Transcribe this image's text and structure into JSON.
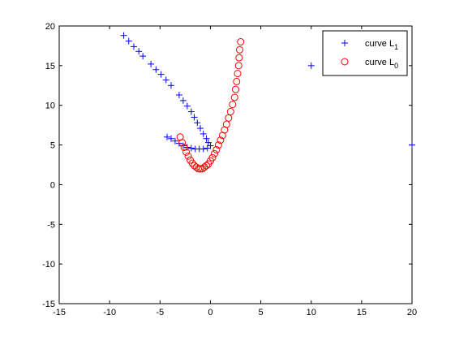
{
  "chart_data": {
    "type": "scatter",
    "title": "",
    "xlabel": "",
    "ylabel": "",
    "xlim": [
      -15,
      20
    ],
    "ylim": [
      -15,
      20
    ],
    "xticks": [
      -15,
      -10,
      -5,
      0,
      5,
      10,
      15,
      20
    ],
    "yticks": [
      -15,
      -10,
      -5,
      0,
      5,
      10,
      15,
      20
    ],
    "grid": false,
    "legend_position": "top-right",
    "series": [
      {
        "name": "curve L",
        "subscript": "1",
        "marker": "plus",
        "color": "#0000ff",
        "points": [
          [
            -8.6,
            18.8
          ],
          [
            -8.1,
            18.1
          ],
          [
            -7.6,
            17.4
          ],
          [
            -7.1,
            16.8
          ],
          [
            -6.7,
            16.2
          ],
          [
            -5.9,
            15.2
          ],
          [
            -5.4,
            14.5
          ],
          [
            -4.9,
            13.9
          ],
          [
            -4.4,
            13.2
          ],
          [
            -3.9,
            12.5
          ],
          [
            -3.1,
            11.3
          ],
          [
            -2.7,
            10.6
          ],
          [
            -2.3,
            9.9
          ],
          [
            -1.9,
            9.2
          ],
          [
            -1.6,
            8.5
          ],
          [
            -1.3,
            7.8
          ],
          [
            -1.0,
            7.1
          ],
          [
            -0.7,
            6.4
          ],
          [
            -0.4,
            5.8
          ],
          [
            -0.2,
            5.3
          ],
          [
            0.0,
            4.9
          ],
          [
            -0.3,
            4.6
          ],
          [
            -0.7,
            4.5
          ],
          [
            -1.1,
            4.5
          ],
          [
            -1.5,
            4.5
          ],
          [
            -1.9,
            4.6
          ],
          [
            -2.3,
            4.7
          ],
          [
            -2.7,
            4.9
          ],
          [
            -3.1,
            5.2
          ],
          [
            -3.5,
            5.5
          ],
          [
            -3.9,
            5.8
          ],
          [
            -4.3,
            6.0
          ],
          [
            10.0,
            15.0
          ],
          [
            20.0,
            5.0
          ]
        ]
      },
      {
        "name": "curve L",
        "subscript": "0",
        "marker": "circle",
        "color": "#ff0000",
        "points": [
          [
            -3.0,
            6.0
          ],
          [
            -2.8,
            5.3
          ],
          [
            -2.6,
            4.7
          ],
          [
            -2.4,
            4.1
          ],
          [
            -2.2,
            3.6
          ],
          [
            -2.0,
            3.1
          ],
          [
            -1.8,
            2.7
          ],
          [
            -1.6,
            2.4
          ],
          [
            -1.4,
            2.2
          ],
          [
            -1.2,
            2.0
          ],
          [
            -1.0,
            2.0
          ],
          [
            -0.8,
            2.0
          ],
          [
            -0.6,
            2.2
          ],
          [
            -0.4,
            2.4
          ],
          [
            -0.2,
            2.6
          ],
          [
            0.0,
            3.0
          ],
          [
            0.2,
            3.4
          ],
          [
            0.4,
            3.9
          ],
          [
            0.6,
            4.4
          ],
          [
            0.8,
            5.0
          ],
          [
            1.0,
            5.6
          ],
          [
            1.2,
            6.2
          ],
          [
            1.4,
            6.9
          ],
          [
            1.6,
            7.6
          ],
          [
            1.8,
            8.4
          ],
          [
            2.0,
            9.2
          ],
          [
            2.2,
            10.1
          ],
          [
            2.4,
            11.0
          ],
          [
            2.5,
            12.0
          ],
          [
            2.6,
            13.0
          ],
          [
            2.7,
            14.0
          ],
          [
            2.8,
            15.0
          ],
          [
            2.85,
            16.0
          ],
          [
            2.9,
            17.0
          ],
          [
            3.0,
            18.0
          ]
        ]
      }
    ]
  }
}
